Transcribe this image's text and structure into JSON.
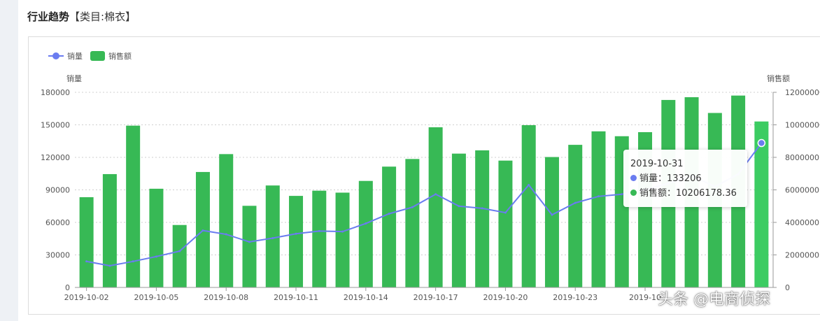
{
  "section": {
    "title": "行业趋势",
    "category": "【类目:棉衣】"
  },
  "colors": {
    "line": "#6a7cf0",
    "bar": "#37b955",
    "bar_highlight": "#3ccc62"
  },
  "tooltip": {
    "date": "2019-10-31",
    "sales_volume_label": "销量：",
    "sales_volume_value": "133206",
    "sales_amount_label": "销售额：",
    "sales_amount_value": "10206178.36"
  },
  "watermark": "头条 @电商侦探",
  "chart_data": {
    "type": "bar",
    "legend_position": "top-left",
    "grid": true,
    "y_left": {
      "label": "销量",
      "min": 0,
      "max": 180000,
      "ticks": [
        "0",
        "30000",
        "60000",
        "90000",
        "120000",
        "150000",
        "180000"
      ]
    },
    "y_right": {
      "label": "销售额",
      "min": 0,
      "max": 12000000,
      "ticks": [
        "0",
        "2000000",
        "4000000",
        "6000000",
        "8000000",
        "10000000",
        "12000000"
      ]
    },
    "x_tick_labels": [
      "2019-10-02",
      "2019-10-05",
      "2019-10-08",
      "2019-10-11",
      "2019-10-14",
      "2019-10-17",
      "2019-10-20",
      "2019-10-23",
      "2019-10"
    ],
    "categories": [
      "2019-10-02",
      "2019-10-03",
      "2019-10-04",
      "2019-10-05",
      "2019-10-06",
      "2019-10-07",
      "2019-10-08",
      "2019-10-09",
      "2019-10-10",
      "2019-10-11",
      "2019-10-12",
      "2019-10-13",
      "2019-10-14",
      "2019-10-15",
      "2019-10-16",
      "2019-10-17",
      "2019-10-18",
      "2019-10-19",
      "2019-10-20",
      "2019-10-21",
      "2019-10-22",
      "2019-10-23",
      "2019-10-24",
      "2019-10-25",
      "2019-10-26",
      "2019-10-27",
      "2019-10-28",
      "2019-10-29",
      "2019-10-30",
      "2019-10-31"
    ],
    "series": [
      {
        "name": "销售额",
        "type": "bar",
        "axis": "right",
        "values": [
          5550000,
          6970000,
          9950000,
          6070000,
          3840000,
          7100000,
          8200000,
          5020000,
          6270000,
          5630000,
          5950000,
          5830000,
          6550000,
          7430000,
          7900000,
          9850000,
          8230000,
          8430000,
          7800000,
          9980000,
          8020000,
          8770000,
          9600000,
          9300000,
          9550000,
          11530000,
          11700000,
          10730000,
          11800000,
          10206178.36
        ]
      },
      {
        "name": "销量",
        "type": "line",
        "axis": "left",
        "values": [
          24000,
          20000,
          24000,
          28500,
          33500,
          52500,
          49000,
          42000,
          45500,
          49500,
          52000,
          51500,
          59000,
          68000,
          74000,
          86000,
          75000,
          73000,
          69000,
          94500,
          67000,
          78000,
          84000,
          86000,
          90000,
          96000,
          103000,
          93000,
          104500,
          133206
        ]
      }
    ]
  }
}
